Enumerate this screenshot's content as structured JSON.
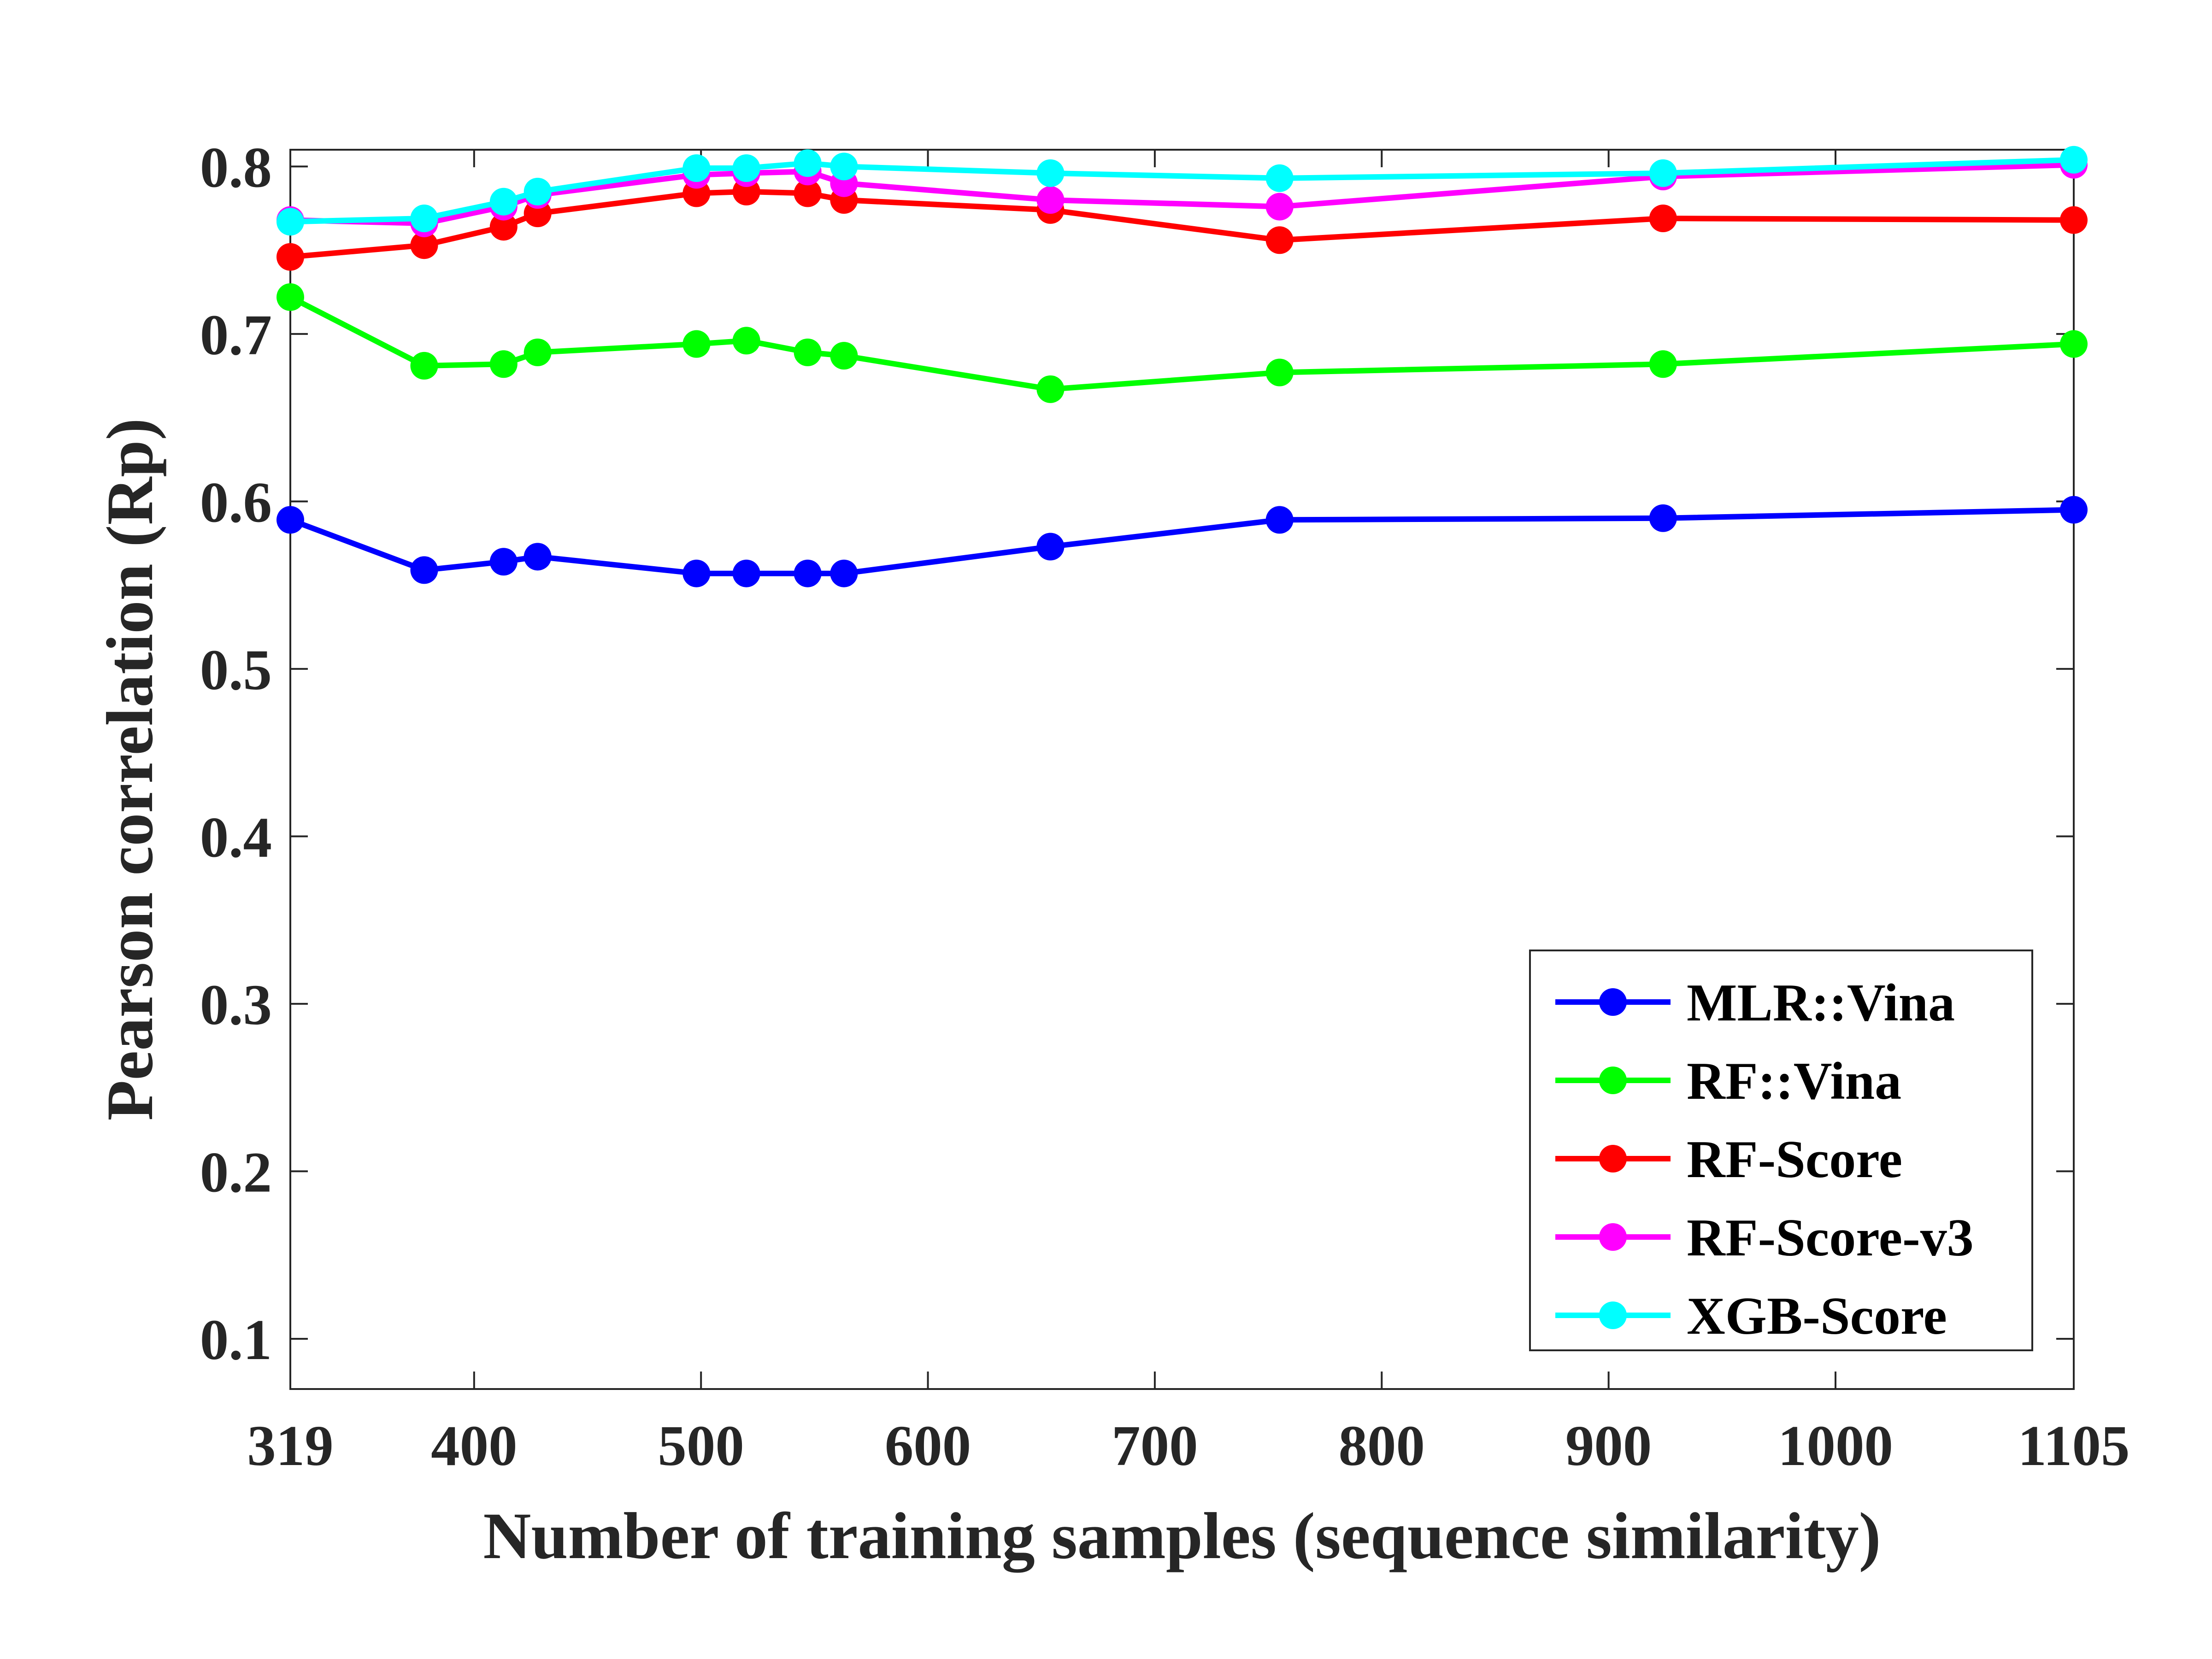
{
  "chart_data": {
    "type": "line",
    "title": "",
    "xlabel": "Number of training samples (sequence similarity)",
    "ylabel": "Pearson correlation (Rp)",
    "xlim": [
      319,
      1105
    ],
    "ylim": [
      0.07,
      0.81
    ],
    "xticks": [
      319,
      400,
      500,
      600,
      700,
      800,
      900,
      1000,
      1105
    ],
    "yticks": [
      0.1,
      0.2,
      0.3,
      0.4,
      0.5,
      0.6,
      0.7,
      0.8
    ],
    "grid": false,
    "legend_position": "bottom-right",
    "x": [
      319,
      378,
      413,
      428,
      498,
      520,
      547,
      563,
      654,
      755,
      924,
      1105
    ],
    "series": [
      {
        "name": "MLR::Vina",
        "color": "#0000ff",
        "values": [
          0.589,
          0.559,
          0.564,
          0.567,
          0.557,
          0.557,
          0.557,
          0.557,
          0.573,
          0.589,
          0.59,
          0.595
        ]
      },
      {
        "name": "RF::Vina",
        "color": "#00ff00",
        "values": [
          0.722,
          0.681,
          0.682,
          0.689,
          0.694,
          0.696,
          0.689,
          0.687,
          0.667,
          0.677,
          0.682,
          0.694
        ]
      },
      {
        "name": "RF-Score",
        "color": "#ff0000",
        "values": [
          0.746,
          0.753,
          0.764,
          0.772,
          0.784,
          0.785,
          0.784,
          0.78,
          0.774,
          0.756,
          0.769,
          0.768
        ]
      },
      {
        "name": "RF-Score-v3",
        "color": "#ff00ff",
        "values": [
          0.768,
          0.766,
          0.776,
          0.783,
          0.795,
          0.796,
          0.797,
          0.79,
          0.78,
          0.776,
          0.794,
          0.801
        ]
      },
      {
        "name": "XGB-Score",
        "color": "#00ffff",
        "values": [
          0.767,
          0.769,
          0.779,
          0.785,
          0.799,
          0.799,
          0.802,
          0.8,
          0.796,
          0.793,
          0.796,
          0.804
        ]
      }
    ]
  }
}
